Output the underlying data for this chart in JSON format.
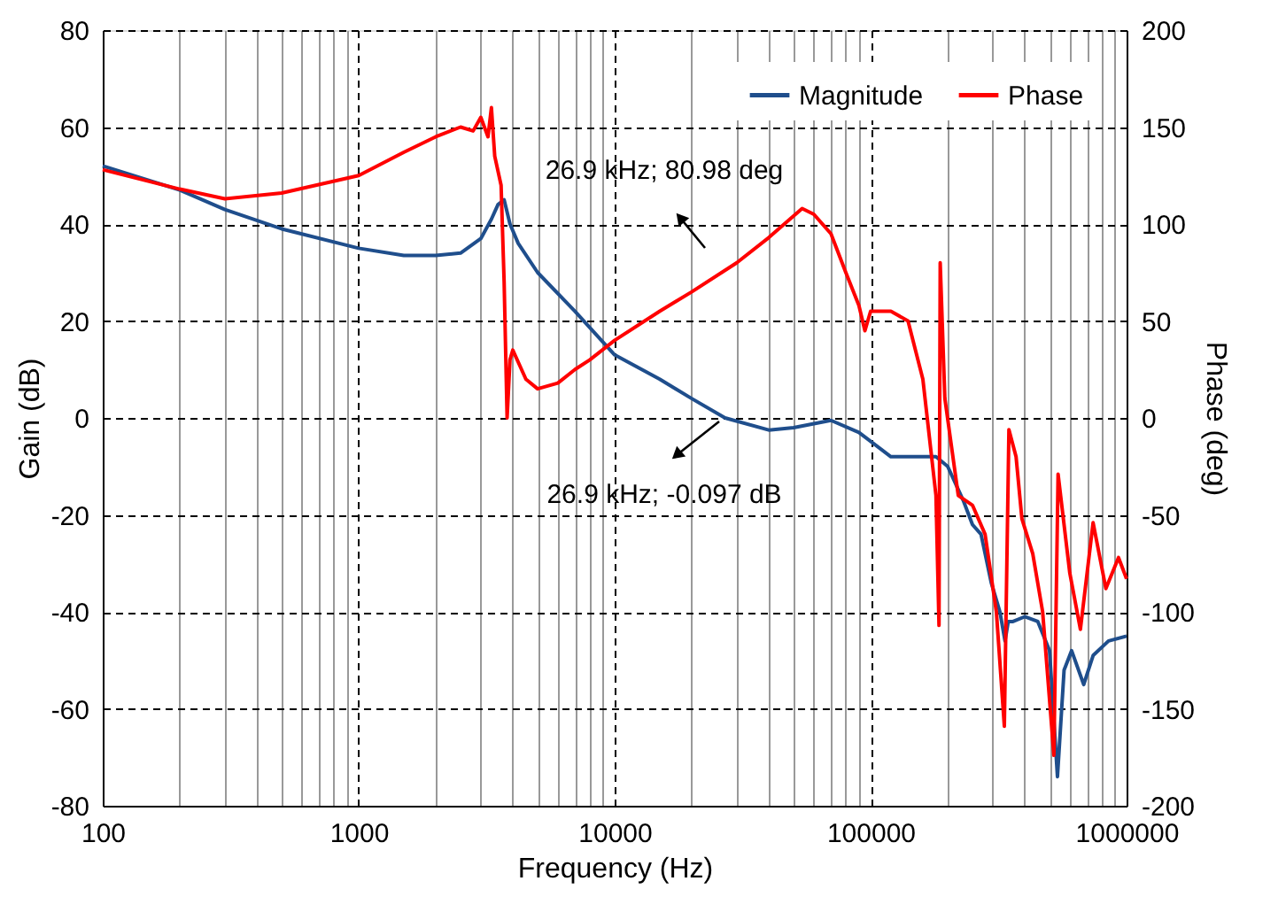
{
  "chart_data": {
    "type": "line",
    "xlabel": "Frequency (Hz)",
    "ylabel": "Gain (dB)",
    "y2label": "Phase (deg)",
    "log": "x",
    "grid": true,
    "legend": "top right",
    "line_style": "solid",
    "marker": "none",
    "xlim": [
      100,
      1000000
    ],
    "xticks": [
      100,
      {
        "value": 200,
        "label": null
      },
      {
        "value": 300,
        "label": null
      },
      {
        "value": 400,
        "label": null
      },
      {
        "value": 500,
        "label": null
      },
      {
        "value": 600,
        "label": null
      },
      {
        "value": 700,
        "label": null
      },
      {
        "value": 800,
        "label": null
      },
      {
        "value": 900,
        "label": null
      },
      1000,
      {
        "value": 2000,
        "label": null
      },
      {
        "value": 3000,
        "label": null
      },
      {
        "value": 4000,
        "label": null
      },
      {
        "value": 5000,
        "label": null
      },
      {
        "value": 6000,
        "label": null
      },
      {
        "value": 7000,
        "label": null
      },
      {
        "value": 8000,
        "label": null
      },
      {
        "value": 9000,
        "label": null
      },
      10000,
      {
        "value": 20000,
        "label": null
      },
      {
        "value": 30000,
        "label": null
      },
      {
        "value": 40000,
        "label": null
      },
      {
        "value": 50000,
        "label": null
      },
      {
        "value": 60000,
        "label": null
      },
      {
        "value": 70000,
        "label": null
      },
      {
        "value": 80000,
        "label": null
      },
      {
        "value": 90000,
        "label": null
      },
      100000,
      {
        "value": 200000,
        "label": null
      },
      {
        "value": 300000,
        "label": null
      },
      {
        "value": 400000,
        "label": null
      },
      {
        "value": 500000,
        "label": null
      },
      {
        "value": 600000,
        "label": null
      },
      {
        "value": 700000,
        "label": null
      },
      {
        "value": 800000,
        "label": null
      },
      {
        "value": 900000,
        "label": null
      },
      1000000
    ],
    "ylim": [
      -80,
      80
    ],
    "yticks": [
      -80,
      -60,
      -40,
      -20,
      0,
      20,
      40,
      60,
      80
    ],
    "y2lim": [
      -200,
      200
    ],
    "y2ticks": [
      -200,
      -150,
      -100,
      -50,
      0,
      50,
      100,
      150,
      200
    ],
    "annotations": [
      "26.9 kHz; 80.98 deg",
      "26.9 kHz; -0.097 dB"
    ],
    "series": [
      {
        "name": "Magnitude",
        "color": "#1f4e8c",
        "x": [
          100,
          200,
          300,
          500,
          1000,
          1500,
          2000,
          2500,
          3000,
          3300,
          3500,
          3700,
          3900,
          4200,
          5000,
          7000,
          10000,
          15000,
          20000,
          27000,
          40000,
          50000,
          70000,
          90000,
          120000,
          170000,
          180000,
          200000,
          230000,
          250000,
          270000,
          296000,
          320000,
          335000,
          345000,
          360000,
          400000,
          450000,
          500000,
          537000,
          570000,
          610000,
          680000,
          740000,
          850000,
          1000000
        ],
        "values": [
          52,
          47,
          43,
          39,
          35,
          33.5,
          33.5,
          34,
          37,
          41,
          44,
          45,
          40,
          36,
          30,
          22,
          13,
          8,
          4,
          0,
          -2.5,
          -2,
          -0.5,
          -3,
          -8,
          -8,
          -8,
          -10,
          -17,
          -22,
          -24,
          -34,
          -40,
          -46,
          -42,
          -42,
          -41,
          -42,
          -48,
          -74,
          -52,
          -48,
          -55,
          -49,
          -46,
          -45
        ]
      },
      {
        "name": "Phase",
        "color": "#ff0000",
        "axis": "y2",
        "x": [
          100,
          200,
          300,
          500,
          1000,
          1500,
          2000,
          2500,
          2800,
          3000,
          3200,
          3300,
          3400,
          3600,
          3700,
          3800,
          3900,
          4000,
          4500,
          5000,
          6000,
          7000,
          8000,
          10000,
          15000,
          20000,
          30000,
          40000,
          54000,
          60000,
          70000,
          80000,
          90000,
          95000,
          100000,
          120000,
          140000,
          160000,
          180000,
          185000,
          187000,
          195000,
          220000,
          250000,
          280000,
          310000,
          333000,
          347000,
          370000,
          390000,
          430000,
          470000,
          520000,
          540000,
          600000,
          660000,
          740000,
          830000,
          930000,
          1000000
        ],
        "values": [
          128,
          118,
          113,
          116,
          125,
          137,
          145,
          150,
          148,
          155,
          145,
          160,
          135,
          120,
          70,
          0,
          30,
          35,
          20,
          15,
          18,
          25,
          30,
          40,
          55,
          65,
          80,
          93,
          108,
          105,
          95,
          75,
          58,
          45,
          55,
          55,
          50,
          20,
          -40,
          -107,
          80,
          10,
          -40,
          -45,
          -60,
          -100,
          -159,
          -6,
          -20,
          -52,
          -70,
          -100,
          -174,
          -29,
          -80,
          -109,
          -54,
          -88,
          -72,
          -83
        ]
      }
    ]
  }
}
